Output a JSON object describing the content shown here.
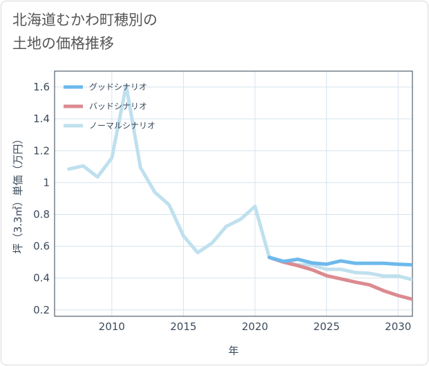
{
  "title": "北海道むかわ町穂別の\n土地の価格推移",
  "chart_data": {
    "type": "line",
    "xlabel": "年",
    "ylabel": "坪（3.3㎡）単価（万円）",
    "xlim": [
      2006,
      2031
    ],
    "ylim": [
      0.16,
      1.7
    ],
    "xticks": [
      2010,
      2015,
      2020,
      2025,
      2030
    ],
    "yticks": [
      0.2,
      0.4,
      0.6,
      0.8,
      1,
      1.2,
      1.4,
      1.6
    ],
    "legend_position": "top-left",
    "series": [
      {
        "name": "グッドシナリオ",
        "color": "#6cb9ec",
        "x": [
          2021,
          2022,
          2023,
          2024,
          2025,
          2026,
          2027,
          2028,
          2029,
          2030,
          2031
        ],
        "y": [
          0.53,
          0.505,
          0.518,
          0.495,
          0.487,
          0.508,
          0.493,
          0.493,
          0.493,
          0.487,
          0.483
        ]
      },
      {
        "name": "バッドシナリオ",
        "color": "#db8a90",
        "x": [
          2021,
          2022,
          2023,
          2024,
          2025,
          2026,
          2027,
          2028,
          2029,
          2030,
          2031
        ],
        "y": [
          0.53,
          0.5,
          0.478,
          0.452,
          0.415,
          0.395,
          0.375,
          0.358,
          0.32,
          0.29,
          0.267
        ]
      },
      {
        "name": "ノーマルシナリオ",
        "color": "#bfe0ee",
        "x": [
          2007,
          2008,
          2009,
          2010,
          2011,
          2012,
          2013,
          2014,
          2015,
          2016,
          2017,
          2018,
          2019,
          2020,
          2021,
          2022,
          2023,
          2024,
          2025,
          2026,
          2027,
          2028,
          2029,
          2030,
          2031
        ],
        "y": [
          1.085,
          1.105,
          1.035,
          1.155,
          1.61,
          1.095,
          0.94,
          0.86,
          0.665,
          0.56,
          0.62,
          0.725,
          0.77,
          0.85,
          0.53,
          0.5,
          0.483,
          0.482,
          0.455,
          0.455,
          0.435,
          0.43,
          0.413,
          0.413,
          0.39
        ]
      }
    ]
  }
}
